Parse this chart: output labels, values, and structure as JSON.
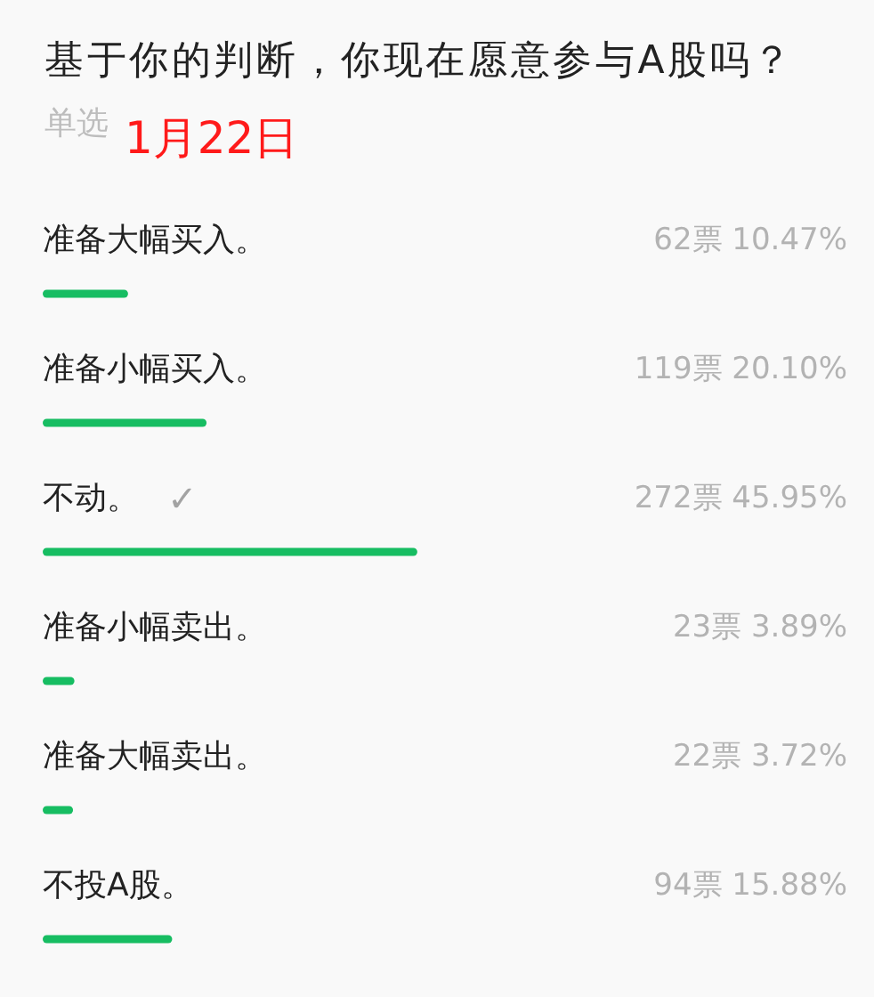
{
  "chart_data": {
    "type": "bar",
    "orientation": "horizontal",
    "title": "基于你的判断，你现在愿意参与A股吗？",
    "subtitle": "单选",
    "annotations": [
      "1月22日",
      {
        "text": "✓",
        "y": "不动。"
      }
    ],
    "categories": [
      "准备大幅买入。",
      "准备小幅买入。",
      "不动。",
      "准备小幅卖出。",
      "准备大幅卖出。",
      "不投A股。"
    ],
    "values": [
      10.47,
      20.1,
      45.95,
      3.89,
      3.72,
      15.88
    ],
    "value_labels": [
      "62票 10.47%",
      "119票 20.10%",
      "272票 45.95%",
      "23票 3.89%",
      "22票 3.72%",
      "94票 15.88%"
    ],
    "color": "#17bd62",
    "tick_labels": "y"
  }
}
